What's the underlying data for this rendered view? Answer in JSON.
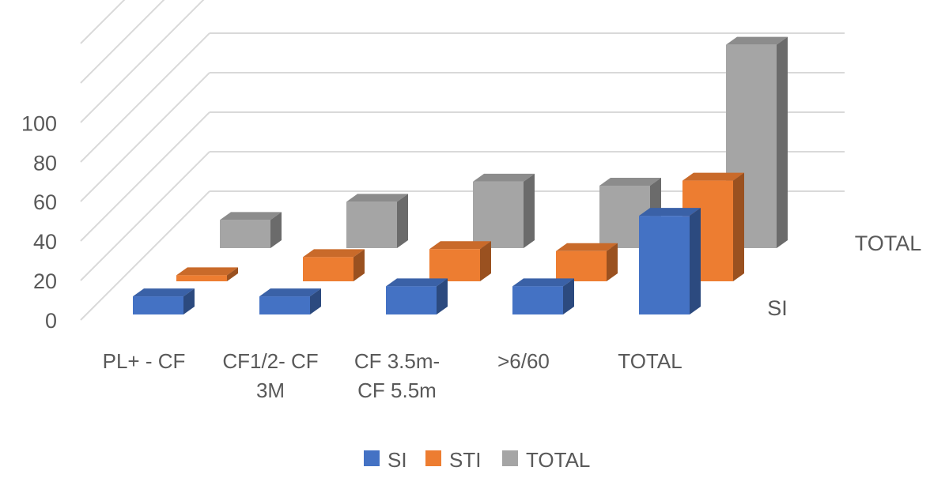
{
  "chart_data": {
    "type": "bar",
    "subtype": "3d-column",
    "categories": [
      "PL+ - CF",
      "CF1/2- CF 3M",
      "CF 3.5m- CF 5.5m",
      ">6/60",
      "TOTAL"
    ],
    "series": [
      {
        "name": "SI",
        "color": "#4472C4",
        "values": [
          9,
          9,
          14,
          14,
          49
        ]
      },
      {
        "name": "STI",
        "color": "#ED7D31",
        "values": [
          3,
          12,
          16,
          15,
          50
        ]
      },
      {
        "name": "TOTAL",
        "color": "#A5A5A5",
        "values": [
          14,
          23,
          33,
          31,
          101
        ]
      }
    ],
    "depth_labels": [
      "SI",
      "TOTAL"
    ],
    "y_ticks": [
      "0",
      "20",
      "40",
      "60",
      "80",
      "100"
    ],
    "ylim": [
      0,
      100
    ],
    "grid": true,
    "legend_position": "bottom"
  }
}
